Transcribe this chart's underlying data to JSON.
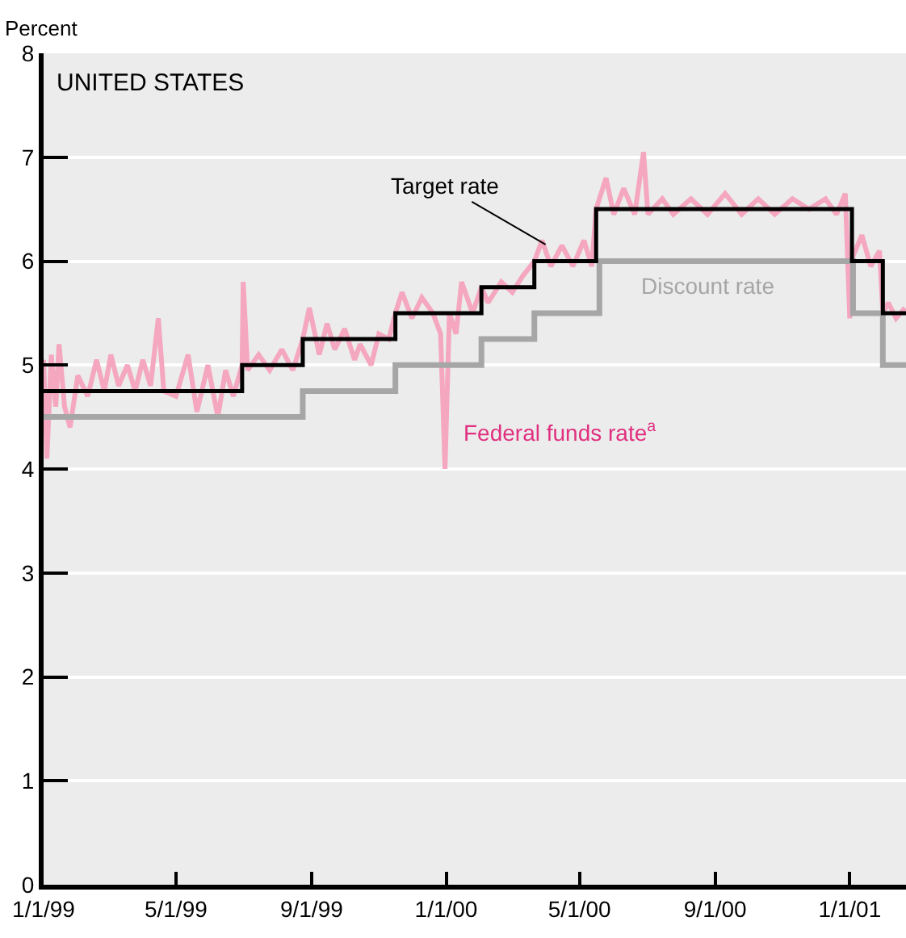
{
  "chart_data": {
    "type": "line",
    "title": "UNITED STATES",
    "ylabel": "Percent",
    "xlim": [
      "1999-01-01",
      "2001-02-21"
    ],
    "ylim": [
      0,
      8
    ],
    "yticks": [
      0,
      1,
      2,
      3,
      4,
      5,
      6,
      7,
      8
    ],
    "xticks": [
      {
        "value": "1999-01-01",
        "label": "1/1/99"
      },
      {
        "value": "1999-05-01",
        "label": "5/1/99"
      },
      {
        "value": "1999-09-01",
        "label": "9/1/99"
      },
      {
        "value": "2000-01-01",
        "label": "1/1/00"
      },
      {
        "value": "2000-05-01",
        "label": "5/1/00"
      },
      {
        "value": "2000-09-01",
        "label": "9/1/00"
      },
      {
        "value": "2001-01-01",
        "label": "1/1/01"
      }
    ],
    "grid": "y",
    "legend": false,
    "series": [
      {
        "name": "Federal funds rate$^{a}$",
        "color": "#f4a7bf",
        "x": [
          "1999-01-01",
          "1999-01-04",
          "1999-01-08",
          "1999-01-12",
          "1999-01-15",
          "1999-01-20",
          "1999-01-25",
          "1999-02-01",
          "1999-02-10",
          "1999-02-18",
          "1999-02-25",
          "1999-03-03",
          "1999-03-10",
          "1999-03-18",
          "1999-03-25",
          "1999-04-01",
          "1999-04-08",
          "1999-04-15",
          "1999-04-20",
          "1999-05-01",
          "1999-05-12",
          "1999-05-20",
          "1999-05-30",
          "1999-06-08",
          "1999-06-15",
          "1999-06-22",
          "1999-06-30",
          "1999-07-01",
          "1999-07-05",
          "1999-07-15",
          "1999-07-25",
          "1999-08-05",
          "1999-08-15",
          "1999-08-24",
          "1999-08-30",
          "1999-09-08",
          "1999-09-15",
          "1999-09-22",
          "1999-10-01",
          "1999-10-10",
          "1999-10-15",
          "1999-10-25",
          "1999-11-01",
          "1999-11-10",
          "1999-11-16",
          "1999-11-22",
          "1999-12-01",
          "1999-12-10",
          "1999-12-20",
          "1999-12-27",
          "1999-12-31",
          "2000-01-04",
          "2000-01-10",
          "2000-01-15",
          "2000-01-25",
          "2000-02-02",
          "2000-02-08",
          "2000-02-20",
          "2000-03-01",
          "2000-03-10",
          "2000-03-21",
          "2000-03-28",
          "2000-04-05",
          "2000-04-15",
          "2000-04-25",
          "2000-05-05",
          "2000-05-12",
          "2000-05-16",
          "2000-05-25",
          "2000-06-01",
          "2000-06-10",
          "2000-06-20",
          "2000-06-28",
          "2000-07-02",
          "2000-07-15",
          "2000-07-25",
          "2000-08-10",
          "2000-08-25",
          "2000-09-10",
          "2000-09-25",
          "2000-10-10",
          "2000-10-25",
          "2000-11-10",
          "2000-11-25",
          "2000-12-10",
          "2000-12-20",
          "2000-12-28",
          "2001-01-01",
          "2001-01-04",
          "2001-01-12",
          "2001-01-20",
          "2001-01-28",
          "2001-01-31",
          "2001-02-05",
          "2001-02-12",
          "2001-02-20"
        ],
        "values": [
          5.05,
          4.1,
          5.1,
          4.6,
          5.2,
          4.6,
          4.4,
          4.9,
          4.7,
          5.05,
          4.75,
          5.1,
          4.8,
          5.0,
          4.75,
          5.05,
          4.8,
          5.45,
          4.75,
          4.7,
          5.1,
          4.55,
          5.0,
          4.5,
          4.95,
          4.7,
          5.0,
          5.8,
          4.95,
          5.1,
          4.95,
          5.15,
          4.95,
          5.25,
          5.55,
          5.1,
          5.4,
          5.15,
          5.35,
          5.05,
          5.2,
          5.0,
          5.3,
          5.25,
          5.5,
          5.7,
          5.45,
          5.65,
          5.5,
          5.3,
          4.0,
          5.5,
          5.3,
          5.8,
          5.5,
          5.75,
          5.6,
          5.8,
          5.7,
          5.85,
          6.0,
          6.2,
          5.95,
          6.15,
          5.95,
          6.2,
          5.95,
          6.5,
          6.8,
          6.45,
          6.7,
          6.45,
          7.05,
          6.45,
          6.6,
          6.45,
          6.6,
          6.45,
          6.65,
          6.45,
          6.6,
          6.45,
          6.6,
          6.5,
          6.6,
          6.45,
          6.65,
          5.45,
          6.05,
          6.25,
          5.95,
          6.1,
          5.5,
          5.6,
          5.45,
          5.55
        ]
      },
      {
        "name": "Discount rate",
        "type": "step",
        "color": "#a6a6a6",
        "x": [
          "1999-01-01",
          "1999-08-24",
          "1999-11-16",
          "2000-02-02",
          "2000-03-21",
          "2000-05-19",
          "2001-01-04",
          "2001-01-31",
          "2001-02-21"
        ],
        "values": [
          4.5,
          4.75,
          5.0,
          5.25,
          5.5,
          6.0,
          5.5,
          5.0,
          5.0
        ]
      },
      {
        "name": "Target rate",
        "type": "step",
        "color": "#000000",
        "x": [
          "1999-01-01",
          "1999-06-30",
          "1999-08-24",
          "1999-11-16",
          "2000-02-02",
          "2000-03-21",
          "2000-05-16",
          "2001-01-03",
          "2001-01-31",
          "2001-02-21"
        ],
        "values": [
          4.75,
          5.0,
          5.25,
          5.5,
          5.75,
          6.0,
          6.5,
          6.0,
          5.5,
          5.5
        ]
      }
    ]
  }
}
